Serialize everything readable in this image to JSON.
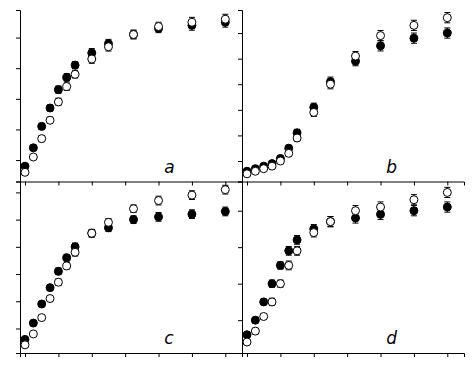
{
  "chart_data": [
    {
      "type": "scatter",
      "annotations": [
        "a"
      ],
      "tick_labels": false,
      "grid": false,
      "xlim": [
        -30,
        1300
      ],
      "xticks": [
        0,
        200,
        400,
        600,
        800,
        1000,
        1200
      ],
      "ylim": [
        -3.5,
        24.5
      ],
      "yticks": [
        0,
        5,
        10,
        15,
        20
      ],
      "series": [
        {
          "color": "black",
          "marker": "circle",
          "x": [
            0,
            50,
            100,
            150,
            200,
            250,
            300,
            400,
            500,
            650,
            800,
            1000,
            1200
          ],
          "values": [
            -1.0,
            2.0,
            5.5,
            8.5,
            11.5,
            13.5,
            15.5,
            17.5,
            19.0,
            20.5,
            21.5,
            22.0,
            22.5
          ],
          "yerr": [
            0.4,
            0.4,
            0.5,
            0.5,
            0.6,
            0.6,
            0.6,
            0.7,
            0.7,
            0.7,
            0.7,
            0.8,
            0.8
          ]
        },
        {
          "color": "white",
          "marker": "circle",
          "x": [
            0,
            50,
            100,
            150,
            200,
            250,
            300,
            400,
            500,
            650,
            800,
            1000,
            1200
          ],
          "values": [
            -2.0,
            0.5,
            3.5,
            6.5,
            9.5,
            12.0,
            14.0,
            16.5,
            18.5,
            20.5,
            21.8,
            22.5,
            23.0
          ],
          "yerr": [
            0.4,
            0.4,
            0.5,
            0.5,
            0.6,
            0.6,
            0.6,
            0.7,
            0.7,
            0.7,
            0.7,
            0.8,
            0.8
          ]
        }
      ]
    },
    {
      "type": "scatter",
      "annotations": [
        "b"
      ],
      "tick_labels": false,
      "grid": false,
      "xlim": [
        -30,
        1300
      ],
      "xticks": [
        0,
        200,
        400,
        600,
        800,
        1000,
        1200
      ],
      "ylim": [
        -4.0,
        29.5
      ],
      "yticks": [
        0,
        5,
        10,
        15,
        20,
        25
      ],
      "series": [
        {
          "color": "black",
          "marker": "circle",
          "x": [
            0,
            50,
            100,
            150,
            200,
            250,
            300,
            400,
            500,
            650,
            800,
            1000,
            1200
          ],
          "values": [
            -2.0,
            -1.5,
            -1.0,
            -0.5,
            0.5,
            2.5,
            5.5,
            10.5,
            15.5,
            19.5,
            22.5,
            24.0,
            25.0
          ],
          "yerr": [
            0.3,
            0.3,
            0.4,
            0.4,
            0.5,
            0.6,
            0.7,
            0.8,
            0.9,
            0.9,
            1.0,
            1.0,
            1.0
          ]
        },
        {
          "color": "white",
          "marker": "circle",
          "x": [
            0,
            50,
            100,
            150,
            200,
            250,
            300,
            400,
            500,
            650,
            800,
            1000,
            1200
          ],
          "values": [
            -2.5,
            -2.0,
            -1.5,
            -1.0,
            0.0,
            1.5,
            4.5,
            9.5,
            15.0,
            20.5,
            24.5,
            26.5,
            28.0
          ],
          "yerr": [
            0.3,
            0.3,
            0.4,
            0.4,
            0.5,
            0.6,
            0.7,
            0.8,
            0.9,
            0.9,
            1.0,
            1.0,
            1.0
          ]
        }
      ]
    },
    {
      "type": "scatter",
      "annotations": [
        "c"
      ],
      "tick_labels": false,
      "grid": false,
      "xlim": [
        -30,
        1300
      ],
      "xticks": [
        0,
        200,
        400,
        600,
        800,
        1000,
        1200
      ],
      "ylim": [
        -4.5,
        27.0
      ],
      "yticks": [
        0,
        5,
        10,
        15,
        20,
        25
      ],
      "series": [
        {
          "color": "black",
          "marker": "circle",
          "x": [
            0,
            50,
            100,
            150,
            200,
            250,
            300,
            400,
            500,
            650,
            800,
            1000,
            1200
          ],
          "values": [
            -2.0,
            1.0,
            4.5,
            7.5,
            10.5,
            13.0,
            15.0,
            17.5,
            18.5,
            20.0,
            20.5,
            21.0,
            21.5
          ],
          "yerr": [
            0.4,
            0.4,
            0.5,
            0.5,
            0.6,
            0.6,
            0.7,
            0.7,
            0.7,
            0.7,
            0.8,
            0.8,
            0.8
          ]
        },
        {
          "color": "white",
          "marker": "circle",
          "x": [
            0,
            50,
            100,
            150,
            200,
            250,
            300,
            400,
            500,
            650,
            800,
            1000,
            1200
          ],
          "values": [
            -3.0,
            -1.0,
            2.0,
            5.5,
            8.5,
            11.5,
            14.0,
            17.5,
            19.5,
            22.0,
            23.5,
            24.5,
            25.5
          ],
          "yerr": [
            0.4,
            0.4,
            0.5,
            0.5,
            0.6,
            0.6,
            0.7,
            0.7,
            0.7,
            0.7,
            0.8,
            0.8,
            0.8
          ]
        }
      ]
    },
    {
      "type": "scatter",
      "annotations": [
        "d"
      ],
      "tick_labels": false,
      "grid": false,
      "xlim": [
        -30,
        1300
      ],
      "xticks": [
        0,
        200,
        400,
        600,
        800,
        1000,
        1200
      ],
      "ylim": [
        -4.5,
        19.0
      ],
      "yticks": [
        0,
        5,
        10,
        15
      ],
      "series": [
        {
          "color": "black",
          "marker": "circle",
          "x": [
            0,
            50,
            100,
            150,
            200,
            250,
            300,
            400,
            500,
            650,
            800,
            1000,
            1200
          ],
          "values": [
            -2.0,
            0.0,
            2.5,
            5.0,
            7.5,
            9.5,
            11.0,
            12.5,
            13.5,
            14.0,
            14.5,
            15.0,
            15.5
          ],
          "yerr": [
            0.3,
            0.4,
            0.4,
            0.5,
            0.5,
            0.6,
            0.6,
            0.6,
            0.7,
            0.7,
            0.7,
            0.7,
            0.7
          ]
        },
        {
          "color": "white",
          "marker": "circle",
          "x": [
            0,
            50,
            100,
            150,
            200,
            250,
            300,
            400,
            500,
            650,
            800,
            1000,
            1200
          ],
          "values": [
            -3.0,
            -1.5,
            0.5,
            2.5,
            5.0,
            7.5,
            9.5,
            12.0,
            13.5,
            15.0,
            15.5,
            16.5,
            17.5
          ],
          "yerr": [
            0.3,
            0.4,
            0.4,
            0.5,
            0.5,
            0.6,
            0.6,
            0.6,
            0.7,
            0.7,
            0.7,
            0.7,
            0.7
          ]
        }
      ]
    }
  ]
}
